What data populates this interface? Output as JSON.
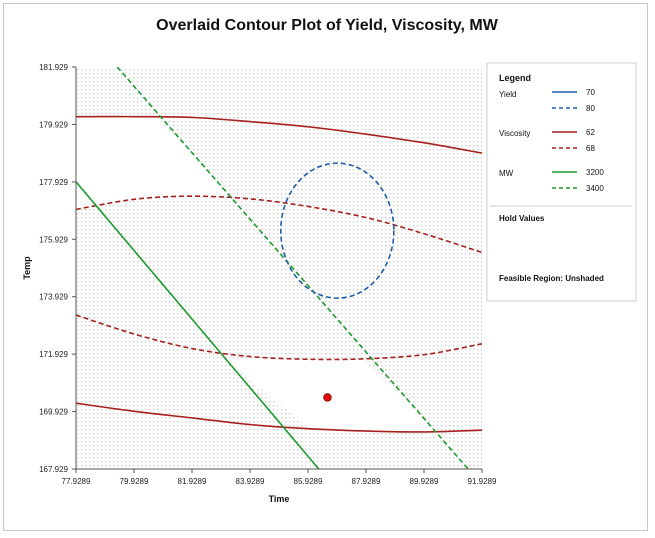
{
  "chart_data": {
    "type": "contour",
    "title": "Overlaid Contour Plot of Yield, Viscosity, MW",
    "xlabel": "Time",
    "ylabel": "Temp",
    "xlim": [
      77.9289,
      91.9289
    ],
    "ylim": [
      167.929,
      181.929
    ],
    "xticks": [
      "77.9289",
      "79.9289",
      "81.9289",
      "83.9289",
      "85.9289",
      "87.9289",
      "89.9289",
      "91.9289"
    ],
    "yticks": [
      "167.929",
      "169.929",
      "171.929",
      "173.929",
      "175.929",
      "177.929",
      "179.929",
      "181.929"
    ],
    "grid": true,
    "colors": {
      "yield": "#1f5fa8",
      "viscosity": "#a8201e",
      "mw": "#1e9a2e",
      "point": "#e01010"
    },
    "legend": {
      "title": "Legend",
      "groups": [
        {
          "name": "Yield",
          "entries": [
            {
              "label": "70",
              "style": "solid"
            },
            {
              "label": "80",
              "style": "dashed"
            }
          ]
        },
        {
          "name": "Viscosity",
          "entries": [
            {
              "label": "62",
              "style": "solid"
            },
            {
              "label": "68",
              "style": "dashed"
            }
          ]
        },
        {
          "name": "MW",
          "entries": [
            {
              "label": "3200",
              "style": "solid"
            },
            {
              "label": "3400",
              "style": "dashed"
            }
          ]
        }
      ],
      "hold_values": "Hold Values",
      "feasible": "Feasible Region: Unshaded"
    },
    "series": [
      {
        "name": "Viscosity 62 (upper)",
        "group": "viscosity",
        "style": "solid",
        "points": [
          [
            77.9289,
            180.2
          ],
          [
            80,
            180.2
          ],
          [
            82,
            180.17
          ],
          [
            84,
            180.02
          ],
          [
            86,
            179.84
          ],
          [
            88,
            179.58
          ],
          [
            90,
            179.28
          ],
          [
            91.9289,
            178.93
          ]
        ]
      },
      {
        "name": "Viscosity 62 (lower)",
        "group": "viscosity",
        "style": "solid",
        "points": [
          [
            77.9289,
            170.22
          ],
          [
            80,
            169.93
          ],
          [
            82,
            169.7
          ],
          [
            84,
            169.47
          ],
          [
            86,
            169.33
          ],
          [
            88,
            169.25
          ],
          [
            90,
            169.22
          ],
          [
            91.9289,
            169.28
          ]
        ]
      },
      {
        "name": "Viscosity 68 (upper)",
        "group": "viscosity",
        "style": "dashed",
        "points": [
          [
            77.9289,
            176.97
          ],
          [
            80,
            177.33
          ],
          [
            82,
            177.43
          ],
          [
            84,
            177.33
          ],
          [
            86,
            177.06
          ],
          [
            88,
            176.67
          ],
          [
            90,
            176.1
          ],
          [
            91.9289,
            175.47
          ]
        ]
      },
      {
        "name": "Viscosity 68 (lower)",
        "group": "viscosity",
        "style": "dashed",
        "points": [
          [
            77.9289,
            173.29
          ],
          [
            80,
            172.61
          ],
          [
            82,
            172.11
          ],
          [
            84,
            171.84
          ],
          [
            86,
            171.75
          ],
          [
            88,
            171.77
          ],
          [
            90,
            171.92
          ],
          [
            91.9289,
            172.29
          ]
        ]
      },
      {
        "name": "MW 3200",
        "group": "mw",
        "style": "solid",
        "points": [
          [
            77.9289,
            177.93
          ],
          [
            86.3,
            167.929
          ]
        ]
      },
      {
        "name": "MW 3400",
        "group": "mw",
        "style": "dashed",
        "points": [
          [
            79.35,
            181.929
          ],
          [
            91.45,
            167.929
          ]
        ]
      }
    ],
    "ellipses": [
      {
        "name": "Yield 80",
        "group": "yield",
        "style": "dashed",
        "cx": 86.94,
        "cy": 176.23,
        "rx": 1.95,
        "ry": 2.35
      }
    ],
    "points": [
      {
        "name": "current setting",
        "group": "point",
        "x": 86.6,
        "y": 170.42
      }
    ]
  }
}
